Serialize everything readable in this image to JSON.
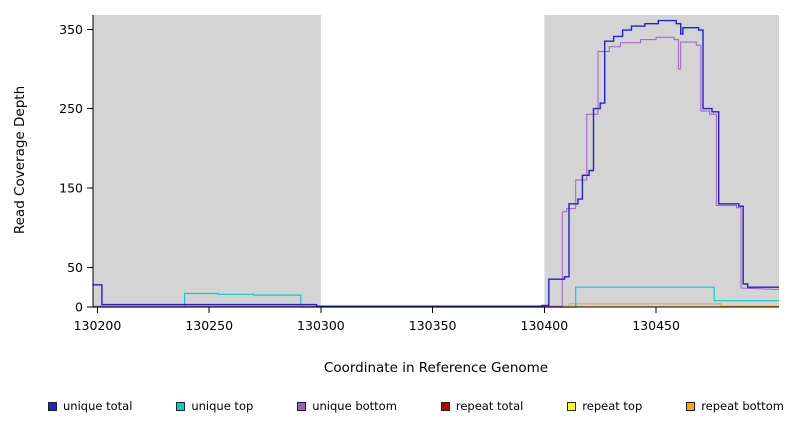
{
  "chart_data": {
    "type": "line",
    "title": "",
    "xlabel": "Coordinate in Reference Genome",
    "ylabel": "Read Coverage Depth",
    "xlim": [
      130198,
      130505
    ],
    "ylim": [
      0,
      368
    ],
    "xticks": [
      130200,
      130250,
      130300,
      130350,
      130400,
      130450
    ],
    "yticks": [
      0,
      50,
      150,
      250,
      350
    ],
    "grid": false,
    "legend_position": "bottom",
    "shade_color": "#d4d4d4",
    "shaded_regions": [
      [
        130198,
        130300
      ],
      [
        130400,
        130505
      ]
    ],
    "draw_order": [
      3,
      4,
      5,
      1,
      2,
      0
    ],
    "series": [
      {
        "name": "unique total",
        "color": "#2121cd",
        "width": 1.4,
        "values": [
          [
            130198,
            28
          ],
          [
            130202,
            28
          ],
          [
            130202,
            3
          ],
          [
            130298,
            3
          ],
          [
            130298,
            1
          ],
          [
            130399,
            1
          ],
          [
            130399,
            2
          ],
          [
            130402,
            2
          ],
          [
            130402,
            35
          ],
          [
            130409,
            35
          ],
          [
            130409,
            38
          ],
          [
            130411,
            38
          ],
          [
            130411,
            130
          ],
          [
            130415,
            130
          ],
          [
            130415,
            136
          ],
          [
            130417,
            136
          ],
          [
            130417,
            166
          ],
          [
            130420,
            166
          ],
          [
            130420,
            172
          ],
          [
            130422,
            172
          ],
          [
            130422,
            250
          ],
          [
            130425,
            250
          ],
          [
            130425,
            257
          ],
          [
            130427,
            257
          ],
          [
            130427,
            335
          ],
          [
            130431,
            335
          ],
          [
            130431,
            341
          ],
          [
            130435,
            341
          ],
          [
            130435,
            349
          ],
          [
            130439,
            349
          ],
          [
            130439,
            354
          ],
          [
            130445,
            354
          ],
          [
            130445,
            357
          ],
          [
            130451,
            357
          ],
          [
            130451,
            361
          ],
          [
            130459,
            361
          ],
          [
            130459,
            357
          ],
          [
            130461,
            357
          ],
          [
            130461,
            344
          ],
          [
            130462,
            344
          ],
          [
            130462,
            352
          ],
          [
            130469,
            352
          ],
          [
            130469,
            349
          ],
          [
            130471,
            349
          ],
          [
            130471,
            250
          ],
          [
            130475,
            250
          ],
          [
            130475,
            246
          ],
          [
            130478,
            246
          ],
          [
            130478,
            130
          ],
          [
            130487,
            130
          ],
          [
            130487,
            127
          ],
          [
            130489,
            127
          ],
          [
            130489,
            29
          ],
          [
            130491,
            29
          ],
          [
            130491,
            25
          ],
          [
            130505,
            25
          ]
        ]
      },
      {
        "name": "unique top",
        "color": "#00ced1",
        "width": 1.2,
        "values": [
          [
            130198,
            0
          ],
          [
            130239,
            0
          ],
          [
            130239,
            17
          ],
          [
            130254,
            17
          ],
          [
            130254,
            16
          ],
          [
            130270,
            16
          ],
          [
            130270,
            15
          ],
          [
            130291,
            15
          ],
          [
            130291,
            0
          ],
          [
            130414,
            0
          ],
          [
            130414,
            25
          ],
          [
            130476,
            25
          ],
          [
            130476,
            8
          ],
          [
            130505,
            8
          ]
        ]
      },
      {
        "name": "unique bottom",
        "color": "#a05ec9",
        "width": 1.0,
        "values": [
          [
            130198,
            1
          ],
          [
            130408,
            1
          ],
          [
            130408,
            120
          ],
          [
            130410,
            120
          ],
          [
            130410,
            124
          ],
          [
            130414,
            124
          ],
          [
            130414,
            160
          ],
          [
            130419,
            160
          ],
          [
            130419,
            243
          ],
          [
            130424,
            243
          ],
          [
            130424,
            322
          ],
          [
            130429,
            322
          ],
          [
            130429,
            328
          ],
          [
            130434,
            328
          ],
          [
            130434,
            333
          ],
          [
            130443,
            333
          ],
          [
            130443,
            337
          ],
          [
            130450,
            337
          ],
          [
            130450,
            340
          ],
          [
            130458,
            340
          ],
          [
            130458,
            337
          ],
          [
            130460,
            337
          ],
          [
            130460,
            300
          ],
          [
            130461,
            300
          ],
          [
            130461,
            334
          ],
          [
            130468,
            334
          ],
          [
            130468,
            330
          ],
          [
            130470,
            330
          ],
          [
            130470,
            247
          ],
          [
            130474,
            247
          ],
          [
            130474,
            243
          ],
          [
            130477,
            243
          ],
          [
            130477,
            128
          ],
          [
            130486,
            128
          ],
          [
            130486,
            125
          ],
          [
            130488,
            125
          ],
          [
            130488,
            24
          ],
          [
            130505,
            22
          ]
        ]
      },
      {
        "name": "repeat total",
        "color": "#c00000",
        "width": 1.0,
        "values": [
          [
            130198,
            0
          ],
          [
            130505,
            0
          ]
        ]
      },
      {
        "name": "repeat top",
        "color": "#ffff00",
        "width": 1.0,
        "values": [
          [
            130198,
            0
          ],
          [
            130505,
            0
          ]
        ]
      },
      {
        "name": "repeat bottom",
        "color": "#ffa500",
        "width": 1.2,
        "values": [
          [
            130198,
            0
          ],
          [
            130411,
            0
          ],
          [
            130411,
            4
          ],
          [
            130479,
            4
          ],
          [
            130479,
            1
          ],
          [
            130505,
            1
          ]
        ]
      }
    ]
  }
}
